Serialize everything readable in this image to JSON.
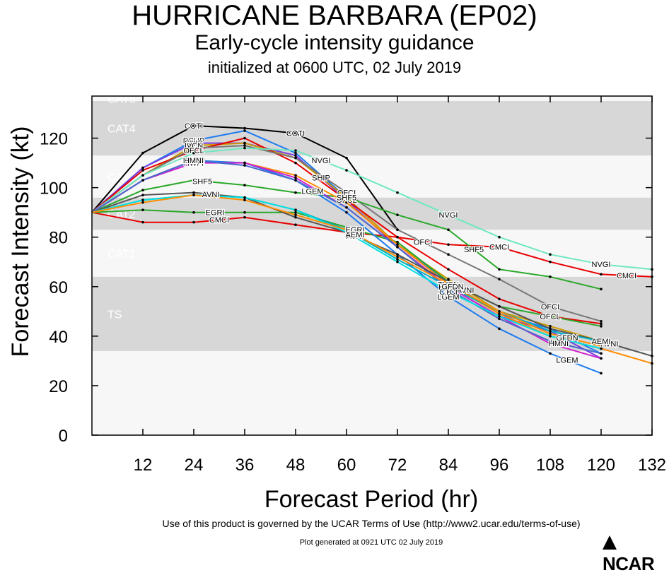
{
  "chart_data": {
    "type": "line",
    "title": "HURRICANE BARBARA (EP02)",
    "subtitle": "Early-cycle intensity guidance",
    "init": "initialized at 0600 UTC, 02 July 2019",
    "xlabel": "Forecast Period (hr)",
    "ylabel": "Forecast Intensity (kt)",
    "xlim": [
      0,
      132
    ],
    "ylim": [
      0,
      137
    ],
    "xticks": [
      12,
      24,
      36,
      48,
      60,
      72,
      84,
      96,
      108,
      120,
      132
    ],
    "yticks": [
      0,
      20,
      40,
      60,
      80,
      100,
      120
    ],
    "bands": [
      {
        "label": "TS",
        "min": 34,
        "max": 64,
        "shade": "dark"
      },
      {
        "label": "CAT1",
        "min": 64,
        "max": 83,
        "shade": "light"
      },
      {
        "label": "CAT2",
        "min": 83,
        "max": 96,
        "shade": "dark"
      },
      {
        "label": "CAT3",
        "min": 96,
        "max": 113,
        "shade": "light"
      },
      {
        "label": "CAT4",
        "min": 113,
        "max": 135,
        "shade": "dark"
      },
      {
        "label": "CAT5",
        "min": 135,
        "max": 137,
        "shade": "light"
      }
    ],
    "series": [
      {
        "name": "COTI",
        "color": "#000000",
        "x": [
          0,
          12,
          24,
          36,
          48,
          60,
          72
        ],
        "values": [
          90,
          114,
          125,
          124,
          122,
          112,
          83
        ],
        "label_hours": [
          24,
          48
        ]
      },
      {
        "name": "DSHP",
        "color": "#1e7cf0",
        "x": [
          0,
          12,
          24,
          36,
          48,
          60,
          72,
          84,
          96,
          108,
          120
        ],
        "values": [
          90,
          108,
          119,
          123,
          114,
          96,
          77,
          62,
          49,
          43,
          33
        ],
        "label_hours": [
          24
        ]
      },
      {
        "name": "SHIP",
        "color": "#7a3ee0",
        "x": [
          0,
          12,
          24,
          36,
          48,
          60,
          72,
          84,
          96,
          108,
          120
        ],
        "values": [
          90,
          108,
          118,
          118,
          113,
          95,
          76,
          60,
          48,
          42,
          31
        ],
        "label_hours": [
          24,
          54
        ]
      },
      {
        "name": "IVCN",
        "color": "#cc9a00",
        "x": [
          0,
          12,
          24,
          36,
          48,
          60,
          72,
          84,
          96,
          108,
          120
        ],
        "values": [
          90,
          105,
          117,
          118,
          112,
          96,
          77,
          63,
          50,
          44,
          38
        ],
        "label_hours": [
          24
        ]
      },
      {
        "name": "OFCL",
        "color": "#e80000",
        "x": [
          0,
          12,
          24,
          36,
          48,
          60,
          72,
          84,
          96,
          108,
          120
        ],
        "values": [
          90,
          107,
          115,
          120,
          110,
          95,
          80,
          67,
          55,
          48,
          45
        ],
        "label_hours": [
          24,
          60,
          108
        ]
      },
      {
        "name": "OFCI",
        "color": "#777777",
        "x": [
          0,
          12,
          24,
          36,
          48,
          60,
          72,
          84,
          96,
          108,
          120
        ],
        "values": [
          90,
          105,
          116,
          117,
          112,
          98,
          83,
          73,
          63,
          52,
          46
        ],
        "label_hours": [
          60,
          78,
          108
        ]
      },
      {
        "name": "NVGI",
        "color": "#6ee8c0",
        "x": [
          0,
          12,
          24,
          36,
          48,
          60,
          72,
          84,
          96,
          108,
          120,
          132
        ],
        "values": [
          90,
          105,
          114,
          116,
          115,
          107,
          98,
          89,
          80,
          73,
          69,
          67
        ],
        "label_hours": [
          54,
          84,
          120
        ]
      },
      {
        "name": "CMCI",
        "color": "#e80000",
        "x": [
          0,
          12,
          24,
          36,
          48,
          60,
          72,
          84,
          96,
          108,
          120,
          132
        ],
        "values": [
          90,
          86,
          86,
          88,
          85,
          82,
          80,
          77,
          76,
          70,
          65,
          64
        ],
        "label_hours": [
          30,
          96,
          126
        ]
      },
      {
        "name": "SHF5",
        "color": "#2aa82a",
        "x": [
          0,
          12,
          24,
          36,
          48,
          60,
          72,
          84,
          96,
          108,
          120
        ],
        "values": [
          90,
          99,
          103,
          101,
          98,
          96,
          89,
          83,
          67,
          64,
          59
        ],
        "label_hours": [
          26,
          60,
          90
        ]
      },
      {
        "name": "EGRI",
        "color": "#2aa82a",
        "x": [
          0,
          12,
          24,
          36,
          48,
          60,
          72,
          84,
          96,
          108,
          120
        ],
        "values": [
          90,
          91,
          90,
          90,
          90,
          84,
          78,
          62,
          52,
          48,
          44
        ],
        "label_hours": [
          29,
          62
        ]
      },
      {
        "name": "TVCN",
        "color": "#ff8c00",
        "x": [
          0,
          12,
          24,
          36,
          48,
          60,
          72,
          84,
          96,
          108,
          120,
          132
        ],
        "values": [
          90,
          103,
          111,
          110,
          105,
          94,
          77,
          61,
          49,
          40,
          35,
          29
        ],
        "label_hours": [
          24,
          84
        ]
      },
      {
        "name": "LGEM",
        "color": "#1e7cf0",
        "x": [
          0,
          12,
          24,
          36,
          48,
          60,
          72,
          84,
          96,
          108,
          120
        ],
        "values": [
          90,
          103,
          111,
          110,
          103,
          90,
          73,
          56,
          43,
          33,
          25
        ],
        "label_hours": [
          24,
          52,
          84,
          112
        ]
      },
      {
        "name": "HWFI",
        "color": "#d020d0",
        "x": [
          0,
          12,
          24,
          36,
          48,
          60,
          72,
          84,
          96,
          108,
          120
        ],
        "values": [
          90,
          103,
          110,
          110,
          104,
          92,
          76,
          60,
          48,
          37,
          31
        ],
        "label_hours": [
          24,
          84
        ]
      },
      {
        "name": "HMNI",
        "color": "#4a6acc",
        "x": [
          0,
          12,
          24,
          36,
          48,
          60,
          72,
          84,
          96,
          108,
          120
        ],
        "values": [
          90,
          103,
          111,
          109,
          103,
          92,
          76,
          59,
          47,
          38,
          33
        ],
        "label_hours": [
          24,
          110
        ]
      },
      {
        "name": "AVNI",
        "color": "#555555",
        "x": [
          0,
          12,
          24,
          36,
          48,
          60,
          72,
          84,
          96,
          108,
          120,
          132
        ],
        "values": [
          90,
          97,
          98,
          96,
          88,
          82,
          73,
          62,
          52,
          43,
          38,
          32
        ],
        "label_hours": [
          28,
          62,
          88,
          122
        ]
      },
      {
        "name": "AEMI",
        "color": "#00b0c0",
        "x": [
          0,
          12,
          24,
          36,
          48,
          60,
          72,
          84,
          96,
          108,
          120
        ],
        "values": [
          90,
          95,
          97,
          96,
          91,
          83,
          71,
          60,
          50,
          42,
          38
        ],
        "label_hours": [
          62,
          120
        ]
      },
      {
        "name": "CTCI",
        "color": "#00e0e0",
        "x": [
          0,
          12,
          24,
          36,
          48,
          60,
          72,
          84,
          96,
          108,
          120
        ],
        "values": [
          90,
          95,
          97,
          96,
          91,
          82,
          70,
          58,
          48,
          40,
          35
        ],
        "label_hours": [
          84
        ]
      },
      {
        "name": "GFDN",
        "color": "#ff8c00",
        "x": [
          0,
          12,
          24,
          36,
          48,
          60,
          72,
          84,
          96,
          108,
          120
        ],
        "values": [
          90,
          94,
          97,
          95,
          89,
          83,
          72,
          61,
          50,
          41,
          36
        ],
        "label_hours": [
          85,
          112
        ]
      }
    ]
  },
  "footer": {
    "terms": "Use of this product is governed by the UCAR Terms of Use (http://www2.ucar.edu/terms-of-use)",
    "generated": "Plot generated at 0921 UTC   02 July 2019",
    "logo": "NCAR"
  }
}
